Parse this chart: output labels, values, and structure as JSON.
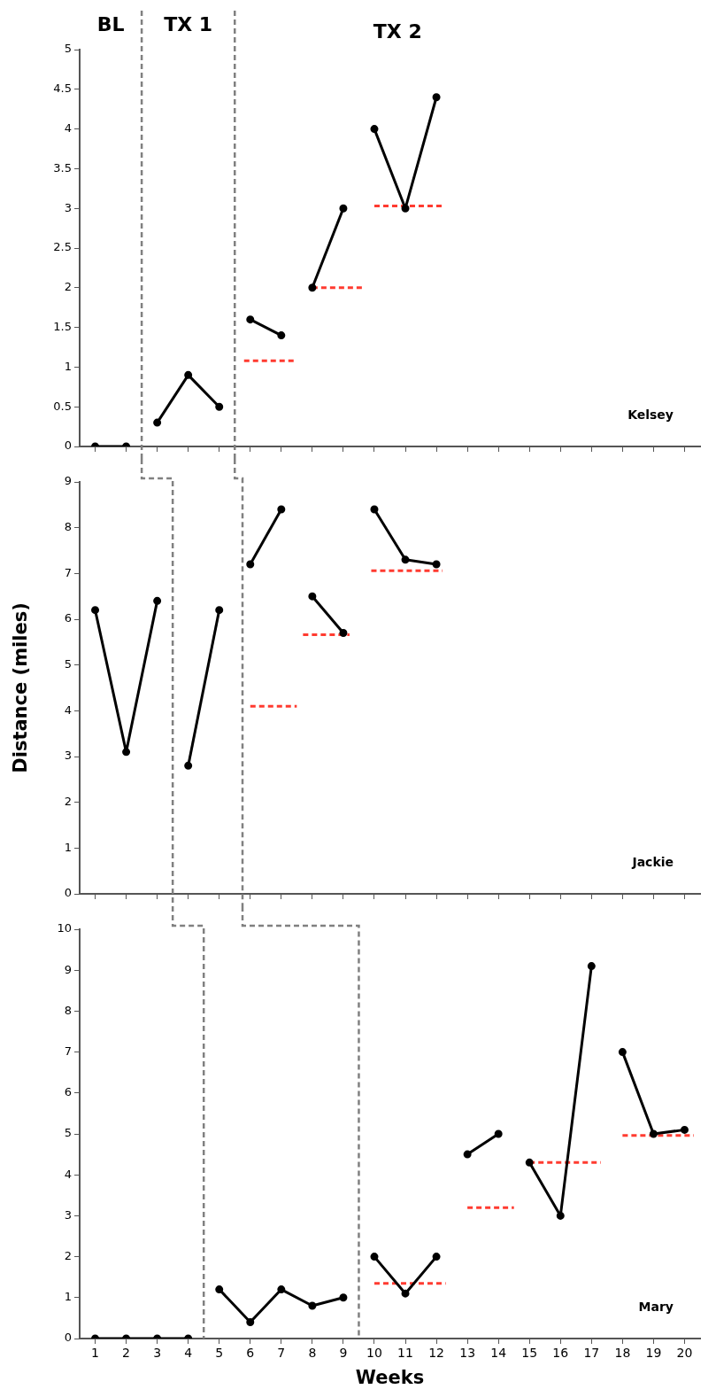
{
  "chart_data": [
    {
      "type": "line",
      "title": "Kelsey",
      "annotations": [
        "BL",
        "TX 1",
        "TX 2"
      ],
      "xlim": [
        0.5,
        20.5
      ],
      "xticks": [
        1,
        2,
        3,
        4,
        5,
        6,
        7,
        8,
        9,
        10,
        11,
        12,
        13,
        14,
        15,
        16,
        17,
        18,
        19,
        20
      ],
      "ylim": [
        0,
        5
      ],
      "yticks": [
        0,
        0.5,
        1,
        1.5,
        2,
        2.5,
        3,
        3.5,
        4,
        4.5,
        5
      ],
      "tick_labels": "y",
      "grid": false,
      "legend": false,
      "ref_lines": [
        {
          "axis": "x",
          "value": 2.5,
          "color": "#808080",
          "line_style": "dashed"
        },
        {
          "axis": "x",
          "value": 5.5,
          "color": "#808080",
          "line_style": "dashed"
        }
      ],
      "series": [
        {
          "color": "#000000",
          "marker": "circle",
          "line_style": "solid",
          "x": [
            1,
            2
          ],
          "values": [
            0,
            0
          ]
        },
        {
          "color": "#000000",
          "marker": "circle",
          "line_style": "solid",
          "x": [
            3,
            4,
            5
          ],
          "values": [
            0.3,
            0.9,
            0.5
          ]
        },
        {
          "color": "#000000",
          "marker": "circle",
          "line_style": "solid",
          "x": [
            6,
            7
          ],
          "values": [
            1.6,
            1.4
          ]
        },
        {
          "color": "#000000",
          "marker": "circle",
          "line_style": "solid",
          "x": [
            8,
            9
          ],
          "values": [
            2,
            3
          ]
        },
        {
          "color": "#000000",
          "marker": "circle",
          "line_style": "solid",
          "x": [
            10,
            11,
            12
          ],
          "values": [
            4,
            3,
            4.4
          ]
        },
        {
          "color": "#ff3b30",
          "marker": "none",
          "line_style": "dashed",
          "x": [
            5.8,
            7.4
          ],
          "values": [
            1.08,
            1.08
          ]
        },
        {
          "color": "#ff3b30",
          "marker": "none",
          "line_style": "dashed",
          "x": [
            8,
            9.6
          ],
          "values": [
            2,
            2
          ]
        },
        {
          "color": "#ff3b30",
          "marker": "none",
          "line_style": "dashed",
          "x": [
            10,
            12.2
          ],
          "values": [
            3.03,
            3.03
          ]
        }
      ]
    },
    {
      "type": "line",
      "title": "Jackie",
      "ylabel": "Distance (miles)",
      "xlim": [
        0.5,
        20.5
      ],
      "xticks": [
        1,
        2,
        3,
        4,
        5,
        6,
        7,
        8,
        9,
        10,
        11,
        12,
        13,
        14,
        15,
        16,
        17,
        18,
        19,
        20
      ],
      "ylim": [
        0,
        9
      ],
      "yticks": [
        0,
        1,
        2,
        3,
        4,
        5,
        6,
        7,
        8,
        9
      ],
      "tick_labels": "y",
      "grid": false,
      "legend": false,
      "ref_lines": [
        {
          "axis": "x",
          "value": 3.5,
          "color": "#808080",
          "line_style": "dashed"
        },
        {
          "axis": "x",
          "value": 5.75,
          "color": "#808080",
          "line_style": "dashed"
        }
      ],
      "series": [
        {
          "color": "#000000",
          "marker": "circle",
          "line_style": "solid",
          "x": [
            1,
            2,
            3
          ],
          "values": [
            6.2,
            3.1,
            6.4
          ]
        },
        {
          "color": "#000000",
          "marker": "circle",
          "line_style": "solid",
          "x": [
            4,
            5
          ],
          "values": [
            2.8,
            6.2
          ]
        },
        {
          "color": "#000000",
          "marker": "circle",
          "line_style": "solid",
          "x": [
            6,
            7
          ],
          "values": [
            7.2,
            8.4
          ]
        },
        {
          "color": "#000000",
          "marker": "circle",
          "line_style": "solid",
          "x": [
            8,
            9
          ],
          "values": [
            6.5,
            5.7
          ]
        },
        {
          "color": "#000000",
          "marker": "circle",
          "line_style": "solid",
          "x": [
            10,
            11,
            12
          ],
          "values": [
            8.4,
            7.3,
            7.2
          ]
        },
        {
          "color": "#ff3b30",
          "marker": "none",
          "line_style": "dashed",
          "x": [
            6,
            7.5
          ],
          "values": [
            4.1,
            4.1
          ]
        },
        {
          "color": "#ff3b30",
          "marker": "none",
          "line_style": "dashed",
          "x": [
            7.7,
            9.2
          ],
          "values": [
            5.66,
            5.66
          ]
        },
        {
          "color": "#ff3b30",
          "marker": "none",
          "line_style": "dashed",
          "x": [
            9.9,
            12.2
          ],
          "values": [
            7.06,
            7.06
          ]
        }
      ]
    },
    {
      "type": "line",
      "title": "Mary",
      "xlabel": "Weeks",
      "xlim": [
        0.5,
        20.5
      ],
      "xticks": [
        1,
        2,
        3,
        4,
        5,
        6,
        7,
        8,
        9,
        10,
        11,
        12,
        13,
        14,
        15,
        16,
        17,
        18,
        19,
        20
      ],
      "ylim": [
        0,
        10
      ],
      "yticks": [
        0,
        1,
        2,
        3,
        4,
        5,
        6,
        7,
        8,
        9,
        10
      ],
      "grid": false,
      "legend": false,
      "ref_lines": [
        {
          "axis": "x",
          "value": 4.5,
          "color": "#808080",
          "line_style": "dashed"
        },
        {
          "axis": "x",
          "value": 9.5,
          "color": "#808080",
          "line_style": "dashed"
        }
      ],
      "series": [
        {
          "color": "#000000",
          "marker": "circle",
          "line_style": "solid",
          "x": [
            1,
            2,
            3,
            4
          ],
          "values": [
            0,
            0,
            0,
            0
          ]
        },
        {
          "color": "#000000",
          "marker": "circle",
          "line_style": "solid",
          "x": [
            5,
            6,
            7,
            8,
            9
          ],
          "values": [
            1.2,
            0.4,
            1.2,
            0.8,
            1
          ]
        },
        {
          "color": "#000000",
          "marker": "circle",
          "line_style": "solid",
          "x": [
            10,
            11,
            12
          ],
          "values": [
            2,
            1.1,
            2
          ]
        },
        {
          "color": "#000000",
          "marker": "circle",
          "line_style": "solid",
          "x": [
            13,
            14
          ],
          "values": [
            4.5,
            5
          ]
        },
        {
          "color": "#000000",
          "marker": "circle",
          "line_style": "solid",
          "x": [
            15,
            16,
            17
          ],
          "values": [
            4.3,
            3,
            9.1
          ]
        },
        {
          "color": "#000000",
          "marker": "circle",
          "line_style": "solid",
          "x": [
            18,
            19,
            20
          ],
          "values": [
            7,
            5,
            5.1
          ]
        },
        {
          "color": "#ff3b30",
          "marker": "none",
          "line_style": "dashed",
          "x": [
            10,
            12.3
          ],
          "values": [
            1.35,
            1.35
          ]
        },
        {
          "color": "#ff3b30",
          "marker": "none",
          "line_style": "dashed",
          "x": [
            13,
            14.5
          ],
          "values": [
            3.2,
            3.2
          ]
        },
        {
          "color": "#ff3b30",
          "marker": "none",
          "line_style": "dashed",
          "x": [
            15,
            17.3
          ],
          "values": [
            4.3,
            4.3
          ]
        },
        {
          "color": "#ff3b30",
          "marker": "none",
          "line_style": "dashed",
          "x": [
            18,
            20.3
          ],
          "values": [
            4.96,
            4.96
          ]
        }
      ]
    }
  ]
}
